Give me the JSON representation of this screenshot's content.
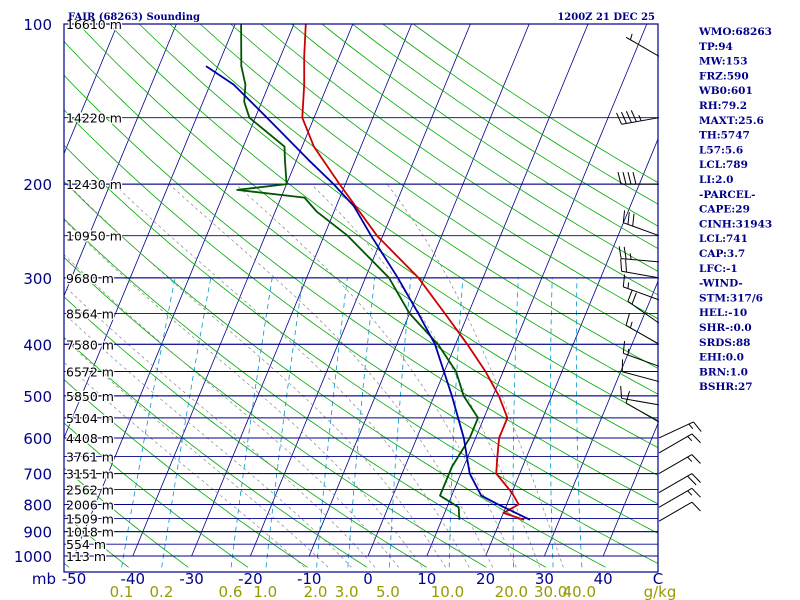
{
  "header": {
    "title": "FAIR (68263) Sounding",
    "time": "1200Z 21 DEC 25"
  },
  "colors": {
    "frame": "#00008b",
    "isobar": "#00008b",
    "dry_adiabat": "#00aa00",
    "moist_adiabat": "#888888",
    "mixing_ratio": "#0099cc",
    "temperature": "#cc0000",
    "dewpoint": "#005500",
    "parcel": "#0000aa",
    "wind": "#000000",
    "mixing_label": "#999900"
  },
  "indices": [
    "WMO:68263",
    "TP:94",
    "MW:153",
    "FRZ:590",
    "WB0:601",
    "RH:79.2",
    "MAXT:25.6",
    "TH:5747",
    "L57:5.6",
    "LCL:789",
    "LI:2.0",
    "-PARCEL-",
    "CAPE:29",
    "CINH:31943",
    "LCL:741",
    "CAP:3.7",
    "LFC:-1",
    "-WIND-",
    "STM:317/6",
    "HEL:-10",
    "SHR-:0.0",
    "SRDS:88",
    "EHI:0.0",
    "BRN:1.0",
    "BSHR:27"
  ],
  "chart_data": {
    "type": "line",
    "title": "FAIR (68263) Sounding",
    "xlabel": "",
    "ylabel": "mb",
    "pressure_axis": {
      "scale": "log",
      "range": [
        1000,
        100
      ],
      "ticks": [
        100,
        200,
        300,
        400,
        500,
        600,
        700,
        800,
        900,
        1000
      ]
    },
    "temperature_axis": {
      "ticks": [
        "mb",
        "-50",
        "-40",
        "-30",
        "-20",
        "-10",
        "0",
        "10",
        "20",
        "30",
        "40",
        "C"
      ]
    },
    "mixing_ratio_labels": [
      "0.1",
      "0.2",
      "0.6",
      "1.0",
      "2.0",
      "3.0",
      "5.0",
      "10.0",
      "20.0",
      "30.0",
      "40.0",
      "g/kg"
    ],
    "height_labels": [
      {
        "p": 100,
        "label": "16610 m"
      },
      {
        "p": 150,
        "label": "14220 m"
      },
      {
        "p": 200,
        "label": "12430 m"
      },
      {
        "p": 250,
        "label": "10950 m"
      },
      {
        "p": 300,
        "label": "9680 m"
      },
      {
        "p": 350,
        "label": "8564 m"
      },
      {
        "p": 400,
        "label": "7580 m"
      },
      {
        "p": 450,
        "label": "6572 m"
      },
      {
        "p": 500,
        "label": "5850 m"
      },
      {
        "p": 550,
        "label": "5104 m"
      },
      {
        "p": 600,
        "label": "4408 m"
      },
      {
        "p": 650,
        "label": "3761 m"
      },
      {
        "p": 700,
        "label": "3151 m"
      },
      {
        "p": 750,
        "label": "2562 m"
      },
      {
        "p": 800,
        "label": "2006 m"
      },
      {
        "p": 850,
        "label": "1509 m"
      },
      {
        "p": 900,
        "label": "1018 m"
      },
      {
        "p": 950,
        "label": "554 m"
      },
      {
        "p": 1000,
        "label": "113 m"
      }
    ],
    "series": [
      {
        "key": "temperature",
        "points": [
          [
            855,
            24
          ],
          [
            830,
            20
          ],
          [
            800,
            22
          ],
          [
            760,
            20
          ],
          [
            700,
            16
          ],
          [
            650,
            15
          ],
          [
            600,
            14
          ],
          [
            550,
            14
          ],
          [
            500,
            11
          ],
          [
            450,
            7
          ],
          [
            400,
            2
          ],
          [
            350,
            -4
          ],
          [
            300,
            -11
          ],
          [
            250,
            -21
          ],
          [
            200,
            -31
          ],
          [
            170,
            -38
          ],
          [
            150,
            -42
          ],
          [
            130,
            -44
          ],
          [
            115,
            -46
          ],
          [
            100,
            -48
          ]
        ]
      },
      {
        "key": "dewpoint",
        "points": [
          [
            855,
            13
          ],
          [
            810,
            12
          ],
          [
            770,
            8
          ],
          [
            720,
            8
          ],
          [
            680,
            8
          ],
          [
            600,
            9
          ],
          [
            550,
            9
          ],
          [
            500,
            5
          ],
          [
            450,
            2
          ],
          [
            400,
            -3
          ],
          [
            350,
            -10
          ],
          [
            300,
            -16
          ],
          [
            250,
            -26
          ],
          [
            225,
            -33
          ],
          [
            212,
            -36
          ],
          [
            205,
            -48
          ],
          [
            200,
            -40
          ],
          [
            180,
            -42
          ],
          [
            170,
            -43
          ],
          [
            150,
            -51
          ],
          [
            140,
            -53
          ],
          [
            130,
            -54
          ],
          [
            120,
            -56
          ],
          [
            100,
            -59
          ]
        ]
      },
      {
        "key": "parcel",
        "points": [
          [
            855,
            25
          ],
          [
            800,
            18.5
          ],
          [
            770,
            15
          ],
          [
            700,
            11.5
          ],
          [
            600,
            8
          ],
          [
            500,
            3
          ],
          [
            400,
            -3.5
          ],
          [
            350,
            -8.5
          ],
          [
            300,
            -14.5
          ],
          [
            250,
            -22
          ],
          [
            220,
            -27
          ],
          [
            200,
            -32
          ],
          [
            180,
            -38
          ],
          [
            150,
            -48
          ],
          [
            130,
            -56
          ],
          [
            120,
            -62
          ]
        ]
      }
    ],
    "wind_barbs": [
      {
        "p": 115,
        "dir": 300,
        "spd": 5
      },
      {
        "p": 150,
        "dir": 260,
        "spd": 45
      },
      {
        "p": 200,
        "dir": 270,
        "spd": 40
      },
      {
        "p": 250,
        "dir": 290,
        "spd": 30
      },
      {
        "p": 280,
        "dir": 275,
        "spd": 25
      },
      {
        "p": 300,
        "dir": 280,
        "spd": 20
      },
      {
        "p": 330,
        "dir": 290,
        "spd": 15
      },
      {
        "p": 365,
        "dir": 305,
        "spd": 20
      },
      {
        "p": 400,
        "dir": 300,
        "spd": 15
      },
      {
        "p": 440,
        "dir": 290,
        "spd": 15
      },
      {
        "p": 470,
        "dir": 285,
        "spd": 10
      },
      {
        "p": 520,
        "dir": 280,
        "spd": 10
      },
      {
        "p": 560,
        "dir": 300,
        "spd": 10
      },
      {
        "p": 600,
        "dir": 65,
        "spd": 15
      },
      {
        "p": 640,
        "dir": 60,
        "spd": 15
      },
      {
        "p": 700,
        "dir": 60,
        "spd": 15
      },
      {
        "p": 760,
        "dir": 60,
        "spd": 20
      },
      {
        "p": 810,
        "dir": 60,
        "spd": 15
      },
      {
        "p": 860,
        "dir": 60,
        "spd": 10
      }
    ],
    "grid": true
  }
}
